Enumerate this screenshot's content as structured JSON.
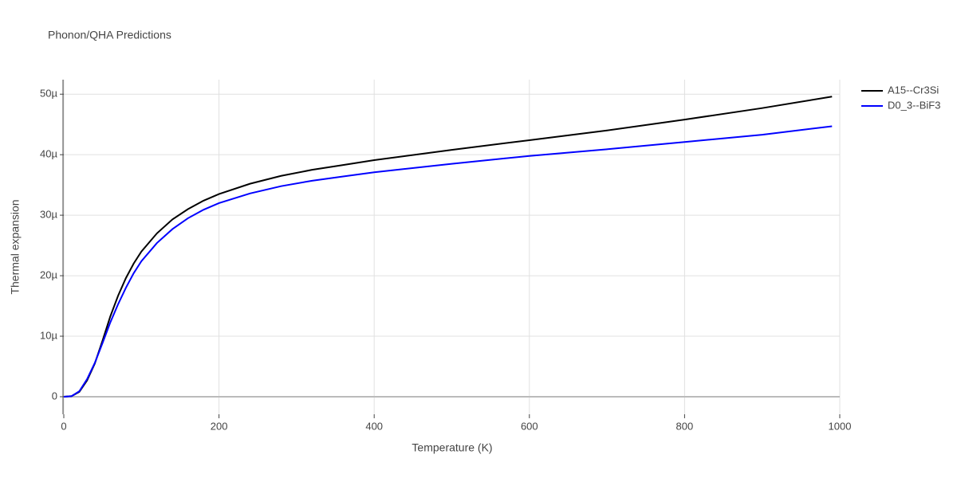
{
  "chart_data": {
    "type": "line",
    "title": "Phonon/QHA Predictions",
    "x_label": "Temperature (K)",
    "y_label": "Thermal expansion",
    "x": [
      0,
      10,
      20,
      30,
      40,
      50,
      60,
      70,
      80,
      90,
      100,
      120,
      140,
      160,
      180,
      200,
      240,
      280,
      320,
      360,
      400,
      500,
      600,
      700,
      800,
      900,
      990
    ],
    "series": [
      {
        "name": "A15--Cr3Si",
        "color": "#000000",
        "values": [
          0,
          1e-07,
          8e-07,
          2.7e-06,
          5.5e-06,
          9.3e-06,
          1.33e-05,
          1.67e-05,
          1.96e-05,
          2.2e-05,
          2.4e-05,
          2.7e-05,
          2.93e-05,
          3.1e-05,
          3.24e-05,
          3.35e-05,
          3.52e-05,
          3.65e-05,
          3.75e-05,
          3.83e-05,
          3.91e-05,
          4.08e-05,
          4.24e-05,
          4.4e-05,
          4.58e-05,
          4.77e-05,
          4.96e-05
        ]
      },
      {
        "name": "D0_3--BiF3",
        "color": "#0000ff",
        "values": [
          0,
          1e-07,
          9e-07,
          2.9e-06,
          5.6e-06,
          8.9e-06,
          1.23e-05,
          1.53e-05,
          1.8e-05,
          2.04e-05,
          2.24e-05,
          2.54e-05,
          2.77e-05,
          2.95e-05,
          3.09e-05,
          3.2e-05,
          3.36e-05,
          3.48e-05,
          3.57e-05,
          3.64e-05,
          3.71e-05,
          3.85e-05,
          3.98e-05,
          4.09e-05,
          4.21e-05,
          4.33e-05,
          4.47e-05
        ]
      }
    ],
    "xlim": [
      0,
      1000
    ],
    "xticks": [
      0,
      200,
      400,
      600,
      800,
      1000
    ],
    "ylim": [
      -2.9e-06,
      5.24e-05
    ],
    "yticks": [
      0,
      {
        "value": 1e-05,
        "label": "10µ"
      },
      {
        "value": 2e-05,
        "label": "20µ"
      },
      {
        "value": 3e-05,
        "label": "30µ"
      },
      {
        "value": 4e-05,
        "label": "40µ"
      },
      {
        "value": 5e-05,
        "label": "50µ"
      }
    ],
    "grid": true,
    "legend": "top-right"
  }
}
